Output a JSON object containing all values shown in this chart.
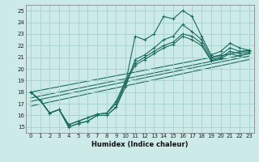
{
  "xlabel": "Humidex (Indice chaleur)",
  "background_color": "#cceae7",
  "grid_color": "#aad4d0",
  "line_color": "#1a6b5e",
  "xlim": [
    -0.5,
    23.5
  ],
  "ylim": [
    14.5,
    25.5
  ],
  "xticks": [
    0,
    1,
    2,
    3,
    4,
    5,
    6,
    7,
    8,
    9,
    10,
    11,
    12,
    13,
    14,
    15,
    16,
    17,
    18,
    19,
    20,
    21,
    22,
    23
  ],
  "yticks": [
    15,
    16,
    17,
    18,
    19,
    20,
    21,
    22,
    23,
    24,
    25
  ],
  "lines": [
    [
      18.0,
      17.3,
      16.2,
      16.5,
      15.0,
      15.3,
      15.5,
      16.0,
      16.0,
      16.7,
      18.8,
      22.8,
      22.5,
      23.0,
      24.5,
      24.3,
      25.0,
      24.5,
      22.8,
      21.2,
      21.5,
      22.2,
      21.8,
      21.6
    ],
    [
      18.0,
      17.3,
      16.2,
      16.5,
      15.0,
      15.3,
      15.5,
      16.0,
      16.0,
      16.7,
      18.5,
      20.8,
      21.2,
      21.8,
      22.5,
      22.8,
      23.8,
      23.2,
      22.5,
      21.0,
      21.2,
      21.8,
      21.5,
      21.6
    ],
    [
      18.0,
      17.3,
      16.2,
      16.5,
      15.2,
      15.5,
      15.8,
      16.1,
      16.2,
      17.2,
      19.0,
      20.5,
      21.0,
      21.5,
      22.0,
      22.3,
      23.0,
      22.8,
      22.2,
      20.8,
      21.0,
      21.5,
      21.3,
      21.5
    ],
    [
      18.0,
      17.3,
      16.2,
      16.5,
      15.2,
      15.5,
      15.8,
      16.1,
      16.2,
      17.0,
      18.8,
      20.3,
      20.8,
      21.3,
      21.8,
      22.1,
      22.8,
      22.5,
      22.0,
      20.7,
      20.9,
      21.3,
      21.1,
      21.4
    ]
  ],
  "linear_lines": [
    {
      "x0": 0,
      "y0": 18.0,
      "x1": 23,
      "y1": 21.6
    },
    {
      "x0": 0,
      "y0": 17.5,
      "x1": 23,
      "y1": 21.3
    },
    {
      "x0": 0,
      "y0": 17.2,
      "x1": 23,
      "y1": 21.1
    },
    {
      "x0": 0,
      "y0": 16.8,
      "x1": 23,
      "y1": 20.8
    }
  ]
}
